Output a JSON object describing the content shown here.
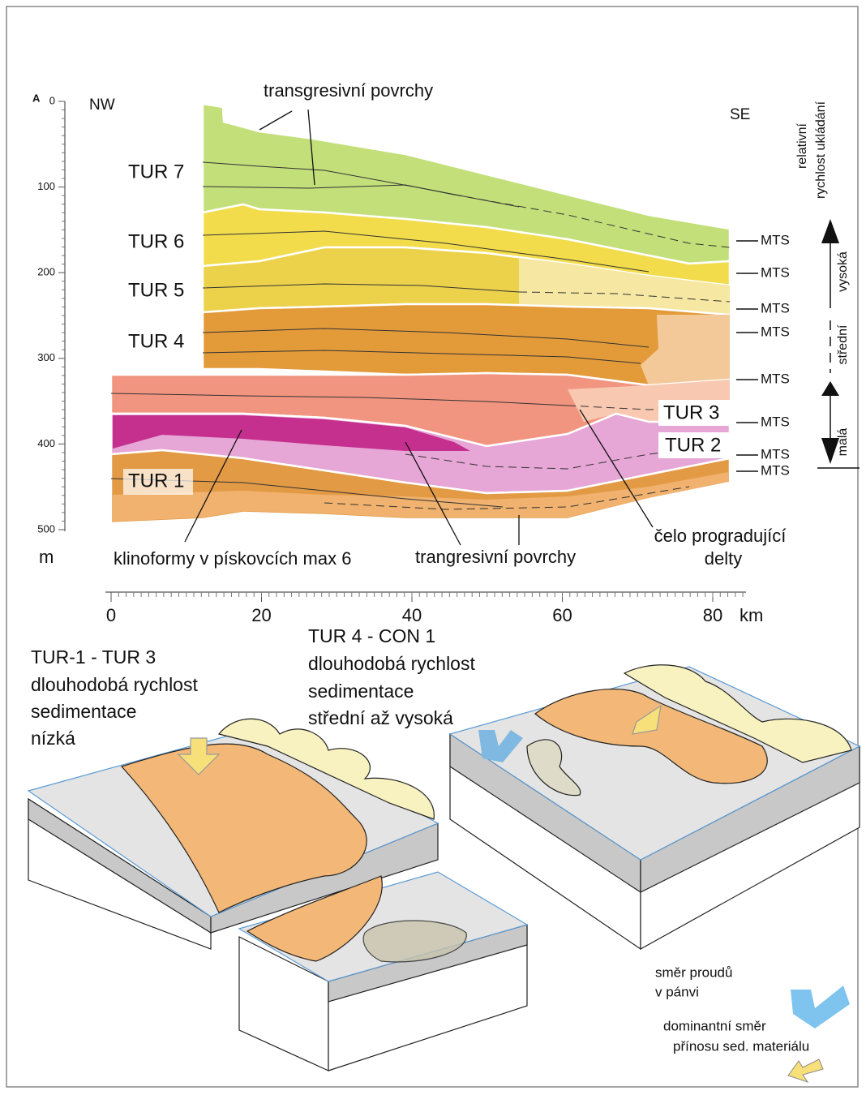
{
  "depth_axis": {
    "marker": "A",
    "ticks": [
      0,
      100,
      200,
      300,
      400,
      500
    ],
    "unit": "m"
  },
  "distance_axis": {
    "ticks": [
      0,
      20,
      40,
      60,
      80
    ],
    "unit": "km"
  },
  "directions": {
    "left": "NW",
    "right": "SE"
  },
  "units": [
    "TUR 7",
    "TUR 6",
    "TUR 5",
    "TUR 4",
    "TUR 3",
    "TUR 2",
    "TUR 1"
  ],
  "mts_labels": [
    "MTS",
    "MTS",
    "MTS",
    "MTS",
    "MTS",
    "MTS",
    "MTS",
    "MTS"
  ],
  "annotations": {
    "top": "transgresivní povrchy",
    "clinoforms": "klinoformy v pískovcích max 6",
    "bottom": "trangresivní povrchy",
    "delta_lines": [
      "čelo progradující",
      "delty"
    ]
  },
  "rate_scale": {
    "title_lines": [
      "relativní",
      "rychlost ukládání"
    ],
    "levels": [
      "vysoká",
      "střední",
      "malá"
    ]
  },
  "block_diagrams": [
    {
      "caption_lines": [
        "TUR-1 - TUR 3",
        "dlouhodobá rychlost",
        "sedimentace",
        "nízká"
      ]
    },
    {
      "caption_lines": [
        "TUR 4 - CON 1",
        "dlouhodobá rychlost",
        "sedimentace",
        "střední až vysoká"
      ]
    }
  ],
  "legend": [
    {
      "label_lines": [
        "směr proudů",
        "v pánvi"
      ]
    },
    {
      "label_lines": [
        "dominantní směr",
        "přínosu sed. materiálu"
      ]
    }
  ]
}
